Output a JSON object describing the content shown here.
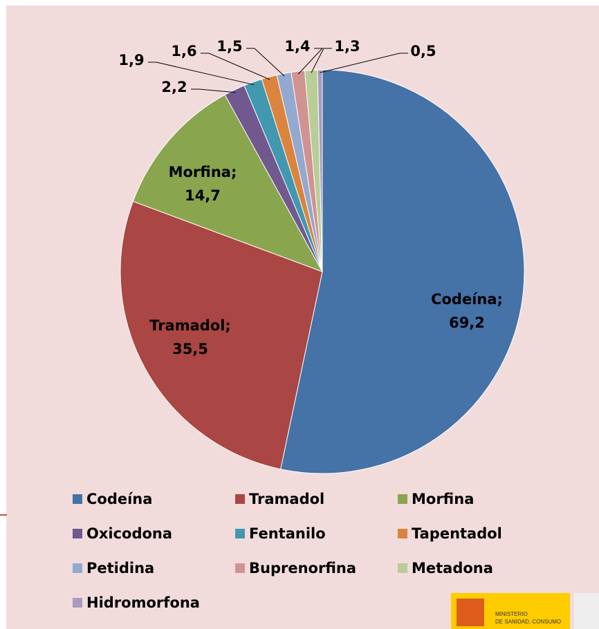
{
  "chart_data": {
    "type": "pie",
    "categories": [
      "Codeína",
      "Tramadol",
      "Morfina",
      "Oxicodona",
      "Fentanilo",
      "Tapentadol",
      "Petidina",
      "Buprenorfina",
      "Metadona",
      "Hidromorfona"
    ],
    "values": [
      69.2,
      35.5,
      14.7,
      2.2,
      1.9,
      1.6,
      1.5,
      1.4,
      1.3,
      0.5
    ],
    "value_labels": [
      "Codeína;\n69,2",
      "Tramadol;\n35,5",
      "Morfina;\n14,7",
      "2,2",
      "1,9",
      "1,6",
      "1,5",
      "1,4",
      "1,3",
      "0,5"
    ],
    "colors": [
      "#4572a7",
      "#aa4643",
      "#89a54e",
      "#71588f",
      "#4198af",
      "#db843d",
      "#93a9cf",
      "#d19392",
      "#b9cd96",
      "#a99bbd"
    ],
    "legend": "bottom"
  },
  "logo": {
    "lines": [
      "MINISTERIO",
      "DE SANIDAD, CONSUMO"
    ]
  }
}
